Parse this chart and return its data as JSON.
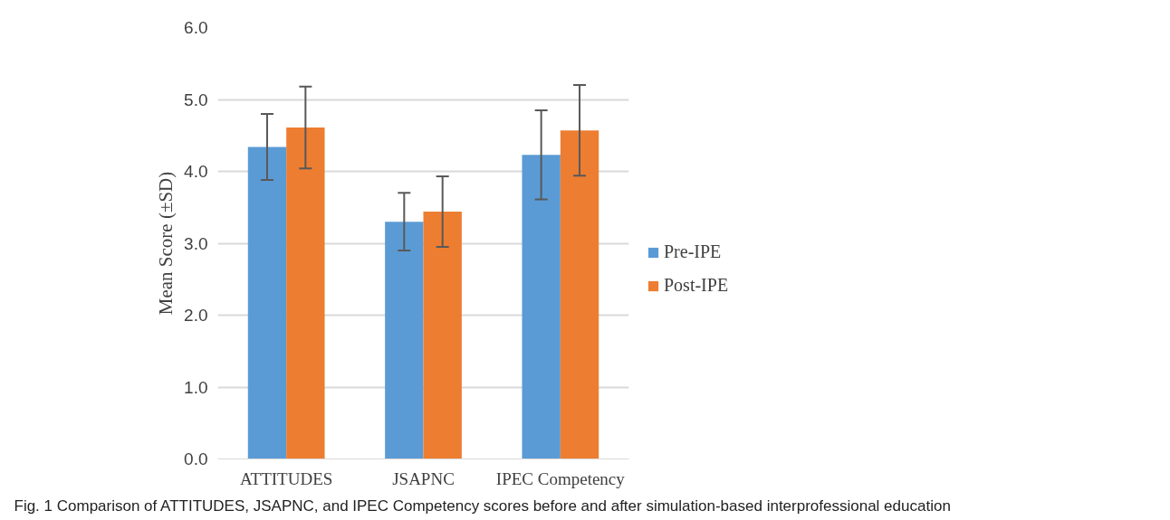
{
  "chart_data": {
    "type": "bar",
    "ylabel": "Mean Score (±SD)",
    "categories": [
      "ATTITUDES",
      "JSAPNC",
      "IPEC Competency"
    ],
    "series": [
      {
        "name": "Pre-IPE",
        "color": "#5b9bd5",
        "values": [
          4.34,
          3.3,
          4.23
        ],
        "errors": [
          0.46,
          0.4,
          0.62
        ]
      },
      {
        "name": "Post-IPE",
        "color": "#ed7d31",
        "values": [
          4.61,
          3.44,
          4.57
        ],
        "errors": [
          0.57,
          0.49,
          0.63
        ]
      }
    ],
    "ylim": [
      0,
      6
    ],
    "yticks": [
      {
        "value": 0,
        "label": "0.0"
      },
      {
        "value": 1,
        "label": "1.0"
      },
      {
        "value": 2,
        "label": "2.0"
      },
      {
        "value": 3,
        "label": "3.0"
      },
      {
        "value": 4,
        "label": "4.0"
      },
      {
        "value": 5,
        "label": "5.0"
      },
      {
        "value": 6,
        "label": "6.0"
      }
    ],
    "grid": "y",
    "legend": "right",
    "annotations": [
      "Fig. 1 Comparison of ATTITUDES, JSAPNC, and IPEC Competency scores before and after simulation-based interprofessional education"
    ]
  }
}
